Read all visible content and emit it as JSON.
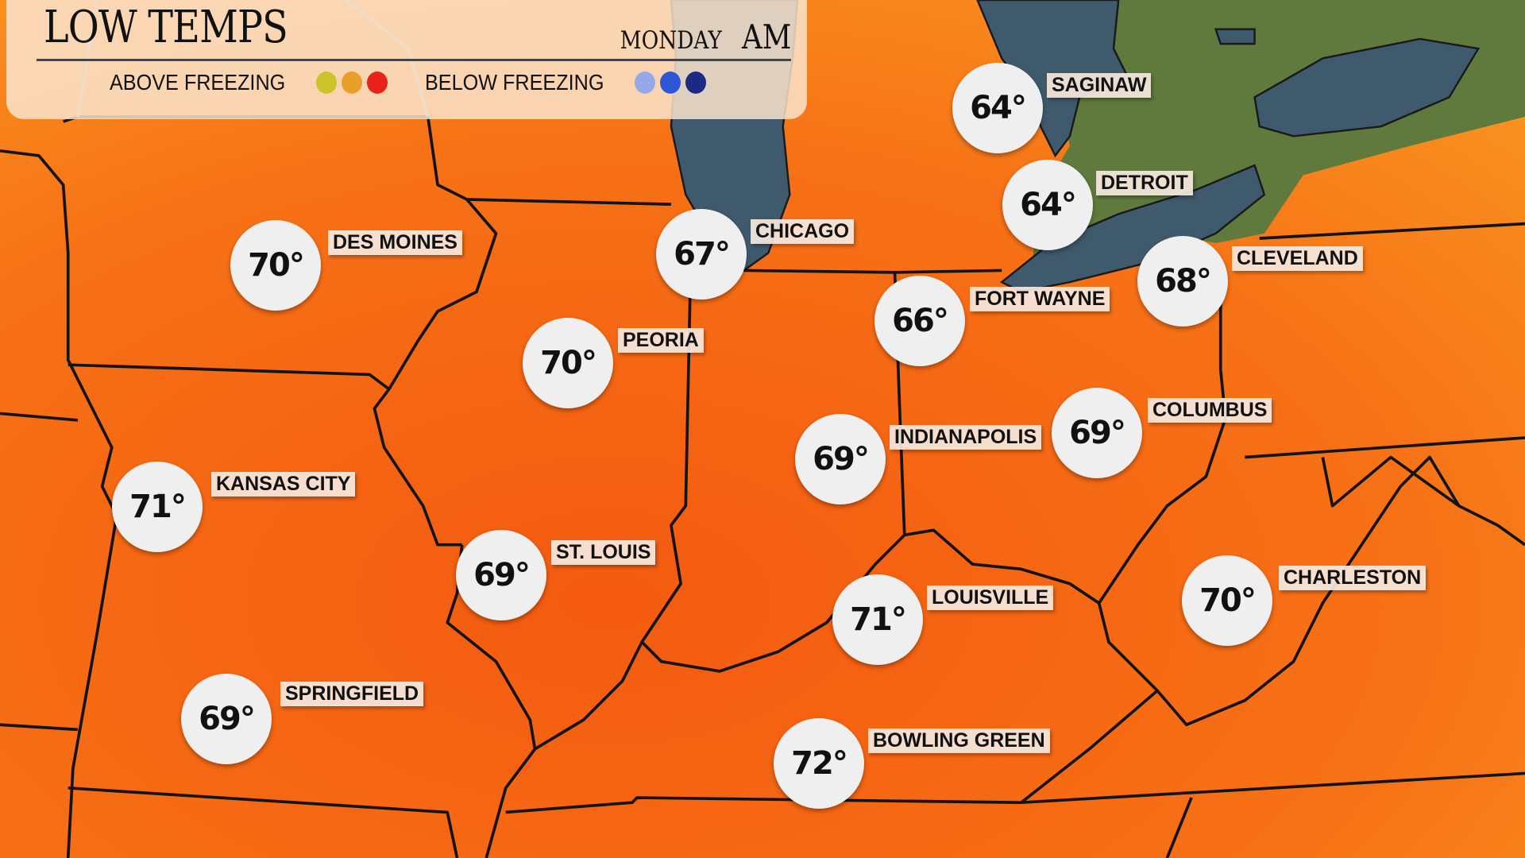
{
  "header": {
    "title": "LOW TEMPS",
    "day": "MONDAY",
    "period": "AM",
    "legend_above": "ABOVE FREEZING",
    "legend_below": "BELOW FREEZING",
    "above_colors": [
      "#c8c42a",
      "#e8a02a",
      "#e8231c"
    ],
    "below_colors": [
      "#97a8e8",
      "#2e57d6",
      "#1c2a86"
    ]
  },
  "cities": [
    {
      "name": "SAGINAW",
      "temp": "64°"
    },
    {
      "name": "DETROIT",
      "temp": "64°"
    },
    {
      "name": "DES MOINES",
      "temp": "70°"
    },
    {
      "name": "CHICAGO",
      "temp": "67°"
    },
    {
      "name": "CLEVELAND",
      "temp": "68°"
    },
    {
      "name": "FORT WAYNE",
      "temp": "66°"
    },
    {
      "name": "PEORIA",
      "temp": "70°"
    },
    {
      "name": "COLUMBUS",
      "temp": "69°"
    },
    {
      "name": "INDIANAPOLIS",
      "temp": "69°"
    },
    {
      "name": "KANSAS CITY",
      "temp": "71°"
    },
    {
      "name": "ST. LOUIS",
      "temp": "69°"
    },
    {
      "name": "LOUISVILLE",
      "temp": "71°"
    },
    {
      "name": "CHARLESTON",
      "temp": "70°"
    },
    {
      "name": "SPRINGFIELD",
      "temp": "69°"
    },
    {
      "name": "BOWLING GREEN",
      "temp": "72°"
    }
  ]
}
